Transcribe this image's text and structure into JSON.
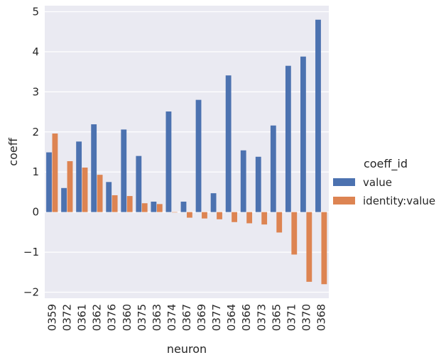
{
  "chart_data": {
    "type": "bar",
    "xlabel": "neuron",
    "ylabel": "coeff",
    "categories": [
      "0359",
      "0372",
      "0361",
      "0362",
      "0376",
      "0360",
      "0375",
      "0363",
      "0374",
      "0367",
      "0369",
      "0377",
      "0364",
      "0366",
      "0373",
      "0365",
      "0371",
      "0370",
      "0368"
    ],
    "series": [
      {
        "name": "value",
        "color": "#4c72b0",
        "values": [
          1.49,
          0.6,
          1.76,
          2.19,
          0.75,
          2.06,
          1.4,
          0.26,
          2.51,
          0.26,
          2.8,
          0.47,
          3.41,
          1.54,
          1.38,
          2.16,
          3.65,
          3.88,
          4.8
        ]
      },
      {
        "name": "identity:value",
        "color": "#dd8452",
        "values": [
          1.96,
          1.27,
          1.11,
          0.93,
          0.42,
          0.4,
          0.22,
          0.2,
          -0.01,
          -0.14,
          -0.16,
          -0.18,
          -0.25,
          -0.28,
          -0.31,
          -0.51,
          -1.06,
          -1.74,
          -1.8
        ]
      }
    ],
    "yticks": [
      -2,
      -1,
      0,
      1,
      2,
      3,
      4,
      5
    ],
    "ytick_labels": [
      "−2",
      "−1",
      "0",
      "1",
      "2",
      "3",
      "4",
      "5"
    ],
    "ylim": [
      -2.15,
      5.15
    ],
    "grid": true,
    "background": "#eaeaf2",
    "legend": {
      "title": "coeff_id",
      "placement": "right"
    }
  }
}
